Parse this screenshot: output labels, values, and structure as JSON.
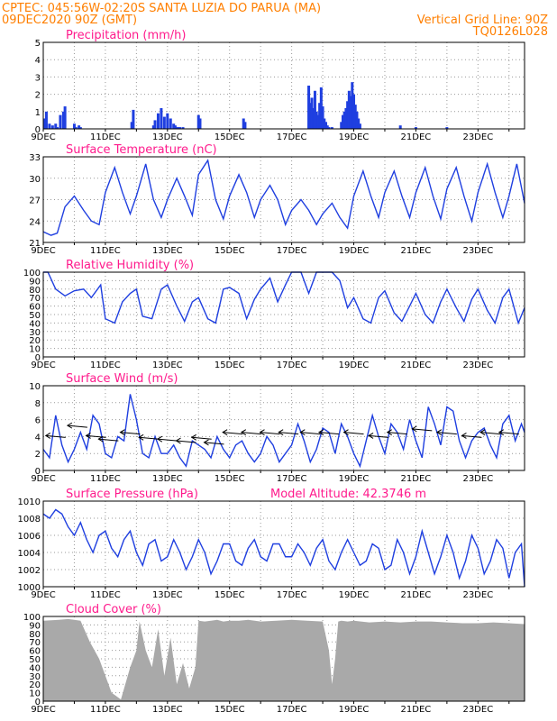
{
  "header": {
    "line1": "CPTEC:   045:56W-02:20S   SANTA LUZIA DO PARUA (MA)",
    "line2_left": "09DEC2020 90Z (GMT)",
    "line2_right": "Vertical Grid Line: 90Z",
    "line3_right": "TQ0126L028"
  },
  "colors": {
    "header": "#ff7f00",
    "title": "#ff1a8c",
    "line": "#1f3fe0",
    "bars": "#1f3fe0",
    "cloud": "#a9a9a9",
    "grid": "#999999",
    "arrow": "#000000"
  },
  "x_ticks": [
    "9DEC",
    "11DEC",
    "13DEC",
    "15DEC",
    "17DEC",
    "19DEC",
    "21DEC",
    "23DEC"
  ],
  "chart_data": [
    {
      "type": "bar",
      "title": "Precipitation (mm/h)",
      "ylim": [
        0,
        5
      ],
      "yticks": [
        "0",
        "1",
        "2",
        "3",
        "4",
        "5"
      ],
      "x": [
        0.05,
        0.1,
        0.2,
        0.3,
        0.4,
        0.45,
        0.55,
        0.65,
        0.7,
        1.0,
        1.05,
        1.15,
        1.2,
        2.85,
        2.9,
        3.55,
        3.6,
        3.7,
        3.8,
        3.9,
        4.0,
        4.1,
        4.2,
        4.25,
        4.3,
        4.35,
        4.4,
        4.5,
        5.0,
        5.05,
        6.45,
        6.5,
        8.55,
        8.6,
        8.65,
        8.7,
        8.75,
        8.8,
        8.85,
        8.9,
        8.95,
        9.0,
        9.05,
        9.1,
        9.15,
        9.2,
        9.3,
        9.6,
        9.65,
        9.7,
        9.75,
        9.8,
        9.85,
        9.9,
        9.95,
        10.0,
        10.05,
        10.1,
        10.15,
        10.2,
        11.5,
        12.0,
        13.0
      ],
      "values": [
        0.6,
        1.0,
        0.3,
        0.2,
        0.3,
        0.1,
        0.8,
        1.0,
        1.3,
        0.3,
        0.1,
        0.2,
        0.1,
        0.4,
        1.1,
        0.2,
        0.5,
        0.9,
        1.2,
        0.7,
        0.9,
        0.6,
        0.3,
        0.2,
        0.1,
        0.1,
        0.1,
        0.1,
        0.8,
        0.6,
        0.6,
        0.4,
        2.5,
        1.5,
        1.8,
        1.2,
        2.2,
        1.0,
        0.8,
        1.5,
        2.4,
        1.3,
        0.6,
        0.4,
        0.2,
        0.1,
        0.1,
        0.4,
        0.8,
        1.0,
        1.2,
        1.6,
        2.2,
        1.9,
        2.7,
        2.0,
        1.4,
        1.0,
        0.6,
        0.3,
        0.2,
        0.1,
        0.1
      ]
    },
    {
      "type": "line",
      "title": "Surface Temperature (nC)",
      "ylim": [
        21,
        33
      ],
      "yticks": [
        "21",
        "24",
        "27",
        "30",
        "33"
      ],
      "x": [
        0,
        0.25,
        0.45,
        0.7,
        1.0,
        1.3,
        1.55,
        1.8,
        2.0,
        2.3,
        2.55,
        2.8,
        3.0,
        3.3,
        3.55,
        3.8,
        4.0,
        4.3,
        4.55,
        4.8,
        5.0,
        5.3,
        5.55,
        5.8,
        6.0,
        6.3,
        6.55,
        6.8,
        7.0,
        7.3,
        7.55,
        7.8,
        8.0,
        8.3,
        8.55,
        8.8,
        9.0,
        9.3,
        9.55,
        9.8,
        10.0,
        10.3,
        10.55,
        10.8,
        11.0,
        11.3,
        11.55,
        11.8,
        12.0,
        12.3,
        12.55,
        12.8,
        13.0,
        13.3,
        13.55,
        13.8,
        14.0,
        14.3,
        14.55,
        14.8,
        15.0,
        15.25,
        15.5
      ],
      "values": [
        22.5,
        22.0,
        22.3,
        26.0,
        27.5,
        25.5,
        24.0,
        23.5,
        28.0,
        31.5,
        28.0,
        25.0,
        27.5,
        32.0,
        27.0,
        24.5,
        27.0,
        30.0,
        27.5,
        24.8,
        30.5,
        32.5,
        27.0,
        24.3,
        27.5,
        30.5,
        28.0,
        24.5,
        27.0,
        29.0,
        27.0,
        23.5,
        25.5,
        27.0,
        25.5,
        23.5,
        25.0,
        26.5,
        24.5,
        23.0,
        27.5,
        31.0,
        27.5,
        24.5,
        28.0,
        31.0,
        27.5,
        24.5,
        28.0,
        31.5,
        27.5,
        24.3,
        28.5,
        31.5,
        27.5,
        24.0,
        28.0,
        32.0,
        28.0,
        24.5,
        27.5,
        32.0,
        26.5
      ]
    },
    {
      "type": "line",
      "title": "Relative Humidity (%)",
      "ylim": [
        0,
        100
      ],
      "yticks": [
        "0",
        "10",
        "20",
        "30",
        "40",
        "50",
        "60",
        "70",
        "80",
        "90",
        "100"
      ],
      "x": [
        0,
        0.15,
        0.4,
        0.7,
        1.0,
        1.3,
        1.55,
        1.85,
        2.0,
        2.3,
        2.55,
        2.8,
        3.0,
        3.2,
        3.5,
        3.8,
        4.0,
        4.3,
        4.55,
        4.8,
        5.0,
        5.3,
        5.55,
        5.8,
        6.0,
        6.3,
        6.55,
        6.8,
        7.0,
        7.3,
        7.55,
        7.8,
        8.0,
        8.3,
        8.55,
        8.8,
        9.0,
        9.3,
        9.55,
        9.8,
        10.0,
        10.3,
        10.55,
        10.8,
        11.0,
        11.3,
        11.55,
        11.8,
        12.0,
        12.3,
        12.55,
        12.8,
        13.0,
        13.3,
        13.55,
        13.8,
        14.0,
        14.3,
        14.55,
        14.8,
        15.0,
        15.3,
        15.5
      ],
      "values": [
        100,
        100,
        80,
        72,
        78,
        80,
        70,
        85,
        45,
        40,
        65,
        75,
        80,
        48,
        45,
        80,
        85,
        60,
        42,
        65,
        70,
        45,
        40,
        80,
        82,
        75,
        45,
        68,
        80,
        93,
        65,
        85,
        100,
        100,
        75,
        100,
        100,
        100,
        90,
        58,
        70,
        45,
        40,
        70,
        78,
        52,
        42,
        60,
        75,
        50,
        40,
        65,
        80,
        58,
        42,
        68,
        80,
        55,
        40,
        70,
        80,
        40,
        58
      ]
    },
    {
      "type": "line",
      "title": "Surface Wind (m/s)",
      "ylim": [
        0,
        10
      ],
      "yticks": [
        "0",
        "2",
        "4",
        "6",
        "8",
        "10"
      ],
      "x": [
        0,
        0.2,
        0.4,
        0.6,
        0.8,
        1.0,
        1.2,
        1.4,
        1.6,
        1.8,
        2.0,
        2.2,
        2.4,
        2.6,
        2.8,
        3.0,
        3.2,
        3.4,
        3.6,
        3.8,
        4.0,
        4.2,
        4.4,
        4.6,
        4.8,
        5.0,
        5.2,
        5.4,
        5.6,
        5.8,
        6.0,
        6.2,
        6.4,
        6.6,
        6.8,
        7.0,
        7.2,
        7.4,
        7.6,
        7.8,
        8.0,
        8.2,
        8.4,
        8.6,
        8.8,
        9.0,
        9.2,
        9.4,
        9.6,
        9.8,
        10.0,
        10.2,
        10.4,
        10.6,
        10.8,
        11.0,
        11.2,
        11.4,
        11.6,
        11.8,
        12.0,
        12.2,
        12.4,
        12.6,
        12.8,
        13.0,
        13.2,
        13.4,
        13.6,
        13.8,
        14.0,
        14.2,
        14.4,
        14.6,
        14.8,
        15.0,
        15.2,
        15.4,
        15.5
      ],
      "values": [
        2.5,
        1.5,
        6.5,
        3.0,
        1.0,
        2.5,
        4.5,
        2.5,
        6.5,
        5.5,
        2.0,
        1.5,
        4.0,
        3.5,
        9.0,
        6.0,
        2.0,
        1.5,
        4.0,
        2.0,
        2.0,
        3.0,
        1.5,
        0.5,
        3.5,
        3.0,
        2.5,
        1.5,
        4.0,
        2.5,
        1.5,
        3.0,
        3.5,
        2.0,
        1.0,
        2.0,
        4.0,
        3.0,
        1.0,
        2.0,
        3.0,
        5.5,
        3.5,
        1.0,
        2.5,
        5.0,
        4.5,
        2.0,
        5.5,
        4.0,
        2.0,
        0.5,
        3.5,
        6.5,
        4.0,
        2.0,
        5.5,
        4.5,
        2.5,
        6.0,
        3.5,
        1.5,
        7.5,
        5.5,
        3.0,
        7.5,
        7.0,
        3.5,
        1.5,
        3.5,
        4.5,
        5.0,
        3.0,
        1.5,
        5.5,
        6.5,
        3.5,
        5.5,
        4.5
      ]
    },
    {
      "type": "line",
      "title": "Surface Pressure (hPa)",
      "ylim": [
        1000,
        1010
      ],
      "yticks": [
        "1000",
        "1002",
        "1004",
        "1006",
        "1008",
        "1010"
      ],
      "annotation": "Model Altitude: 42.3746  m",
      "x": [
        0,
        0.2,
        0.4,
        0.6,
        0.8,
        1.0,
        1.2,
        1.4,
        1.6,
        1.8,
        2.0,
        2.2,
        2.4,
        2.6,
        2.8,
        3.0,
        3.2,
        3.4,
        3.6,
        3.8,
        4.0,
        4.2,
        4.4,
        4.6,
        4.8,
        5.0,
        5.2,
        5.4,
        5.6,
        5.8,
        6.0,
        6.2,
        6.4,
        6.6,
        6.8,
        7.0,
        7.2,
        7.4,
        7.6,
        7.8,
        8.0,
        8.2,
        8.4,
        8.6,
        8.8,
        9.0,
        9.2,
        9.4,
        9.6,
        9.8,
        10.0,
        10.2,
        10.4,
        10.6,
        10.8,
        11.0,
        11.2,
        11.4,
        11.6,
        11.8,
        12.0,
        12.2,
        12.4,
        12.6,
        12.8,
        13.0,
        13.2,
        13.4,
        13.6,
        13.8,
        14.0,
        14.2,
        14.4,
        14.6,
        14.8,
        15.0,
        15.2,
        15.4,
        15.5
      ],
      "values": [
        1008.5,
        1008.0,
        1009.0,
        1008.5,
        1007.0,
        1006.0,
        1007.5,
        1005.5,
        1004.0,
        1006.0,
        1006.5,
        1004.5,
        1003.5,
        1005.5,
        1006.5,
        1004.0,
        1002.5,
        1005.0,
        1005.5,
        1003.0,
        1003.5,
        1005.5,
        1004.0,
        1002.0,
        1003.5,
        1005.5,
        1004.0,
        1001.5,
        1003.0,
        1005.0,
        1005.0,
        1003.0,
        1002.5,
        1004.5,
        1005.5,
        1003.5,
        1003.0,
        1005.0,
        1005.0,
        1003.5,
        1003.5,
        1005.0,
        1004.0,
        1002.5,
        1004.5,
        1005.5,
        1003.0,
        1002.0,
        1004.0,
        1005.5,
        1004.0,
        1002.5,
        1003.0,
        1005.0,
        1004.5,
        1002.0,
        1002.5,
        1005.5,
        1004.0,
        1001.5,
        1003.5,
        1006.5,
        1004.0,
        1001.5,
        1003.5,
        1006.0,
        1004.0,
        1001.0,
        1003.0,
        1006.0,
        1004.5,
        1001.5,
        1003.0,
        1005.5,
        1004.5,
        1001.0,
        1004.0,
        1005.0,
        1000.0
      ]
    },
    {
      "type": "area",
      "title": "Cloud Cover (%)",
      "ylim": [
        0,
        100
      ],
      "yticks": [
        "0",
        "10",
        "20",
        "30",
        "40",
        "50",
        "60",
        "70",
        "80",
        "90",
        "100"
      ],
      "x": [
        0,
        0.5,
        0.8,
        1.0,
        1.2,
        1.5,
        1.8,
        2.0,
        2.2,
        2.5,
        2.8,
        3.0,
        3.1,
        3.3,
        3.5,
        3.7,
        3.9,
        4.1,
        4.3,
        4.5,
        4.7,
        4.9,
        5.0,
        5.2,
        5.4,
        5.6,
        5.8,
        6.0,
        6.3,
        6.6,
        7.0,
        7.5,
        8.0,
        8.5,
        9.0,
        9.2,
        9.3,
        9.4,
        9.5,
        9.6,
        9.8,
        10.0,
        10.5,
        11.0,
        11.5,
        12.0,
        12.5,
        13.0,
        13.5,
        14.0,
        14.5,
        15.0,
        15.5
      ],
      "values": [
        95,
        96,
        97,
        96,
        95,
        70,
        50,
        30,
        10,
        2,
        40,
        60,
        94,
        60,
        40,
        85,
        30,
        75,
        20,
        45,
        15,
        40,
        95,
        94,
        95,
        96,
        94,
        95,
        95,
        96,
        94,
        95,
        96,
        95,
        94,
        60,
        20,
        50,
        94,
        95,
        94,
        95,
        93,
        94,
        93,
        94,
        94,
        93,
        92,
        92,
        93,
        92,
        91
      ]
    }
  ],
  "wind_arrows": [
    {
      "x": 0.4,
      "y": 4.0,
      "dir": -1
    },
    {
      "x": 1.1,
      "y": 5.2,
      "dir": -1
    },
    {
      "x": 1.7,
      "y": 4.0,
      "dir": -1
    },
    {
      "x": 2.1,
      "y": 3.6,
      "dir": -1
    },
    {
      "x": 2.8,
      "y": 4.4,
      "dir": -1
    },
    {
      "x": 3.4,
      "y": 3.8,
      "dir": -1
    },
    {
      "x": 4.0,
      "y": 3.6,
      "dir": -1
    },
    {
      "x": 4.6,
      "y": 3.4,
      "dir": -1
    },
    {
      "x": 5.1,
      "y": 3.8,
      "dir": -1
    },
    {
      "x": 5.5,
      "y": 3.2,
      "dir": -1
    },
    {
      "x": 6.1,
      "y": 4.4,
      "dir": -1
    },
    {
      "x": 6.7,
      "y": 4.4,
      "dir": -1
    },
    {
      "x": 7.3,
      "y": 4.4,
      "dir": -1
    },
    {
      "x": 7.9,
      "y": 4.4,
      "dir": -1
    },
    {
      "x": 8.6,
      "y": 4.4,
      "dir": -1
    },
    {
      "x": 9.2,
      "y": 4.4,
      "dir": -1
    },
    {
      "x": 10.0,
      "y": 4.4,
      "dir": -1
    },
    {
      "x": 10.8,
      "y": 4.0,
      "dir": -1
    },
    {
      "x": 11.4,
      "y": 4.4,
      "dir": -1
    },
    {
      "x": 12.2,
      "y": 4.8,
      "dir": -1
    },
    {
      "x": 13.0,
      "y": 4.4,
      "dir": -1
    },
    {
      "x": 13.8,
      "y": 4.0,
      "dir": -1
    },
    {
      "x": 14.4,
      "y": 4.4,
      "dir": -1
    },
    {
      "x": 15.0,
      "y": 4.4,
      "dir": -1
    }
  ]
}
